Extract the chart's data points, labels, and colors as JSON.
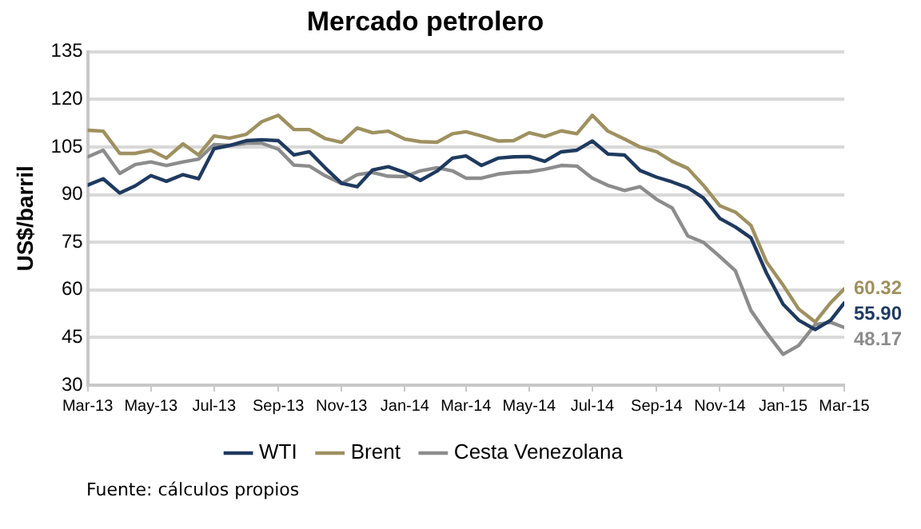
{
  "chart_data": {
    "type": "line",
    "title": "Mercado petrolero",
    "ylabel": "US$/barril",
    "x": [
      "2013-03-01",
      "2013-03-16",
      "2013-04-01",
      "2013-04-16",
      "2013-05-01",
      "2013-05-16",
      "2013-06-01",
      "2013-06-16",
      "2013-07-01",
      "2013-07-16",
      "2013-08-01",
      "2013-08-16",
      "2013-09-01",
      "2013-09-16",
      "2013-10-01",
      "2013-10-16",
      "2013-11-01",
      "2013-11-16",
      "2013-12-01",
      "2013-12-16",
      "2014-01-01",
      "2014-01-16",
      "2014-02-01",
      "2014-02-16",
      "2014-03-01",
      "2014-03-16",
      "2014-04-01",
      "2014-04-16",
      "2014-05-01",
      "2014-05-16",
      "2014-06-01",
      "2014-06-16",
      "2014-07-01",
      "2014-07-16",
      "2014-08-01",
      "2014-08-16",
      "2014-09-01",
      "2014-09-16",
      "2014-10-01",
      "2014-10-16",
      "2014-11-01",
      "2014-11-16",
      "2014-12-01",
      "2014-12-16",
      "2015-01-01",
      "2015-01-16",
      "2015-02-01",
      "2015-02-16",
      "2015-03-01"
    ],
    "series": [
      {
        "name": "WTI",
        "color": "#1f3a5f",
        "values": [
          93,
          95,
          90.5,
          92.8,
          96,
          94.2,
          96.3,
          95,
          104.5,
          105.5,
          107,
          107.3,
          107,
          102.5,
          103.5,
          98.5,
          93.6,
          92.5,
          97.8,
          98.8,
          97,
          94.5,
          97.4,
          101.5,
          102.2,
          99.2,
          101.5,
          101.9,
          102,
          100.5,
          103.5,
          104,
          106.9,
          102.8,
          102.5,
          97.6,
          95.5,
          94,
          92.2,
          89,
          82.5,
          79.8,
          76.4,
          65.3,
          55.5,
          50.5,
          47.5,
          50.5,
          55.9
        ],
        "value_labels": [
          null,
          null,
          null,
          null,
          null,
          null,
          null,
          null,
          null,
          null,
          null,
          null,
          null,
          null,
          null,
          null,
          null,
          null,
          null,
          null,
          null,
          null,
          null,
          null,
          null,
          null,
          null,
          null,
          null,
          null,
          null,
          null,
          null,
          null,
          null,
          null,
          null,
          null,
          null,
          null,
          null,
          null,
          null,
          null,
          null,
          null,
          null,
          null,
          "55.90"
        ]
      },
      {
        "name": "Brent",
        "color": "#9e9160",
        "values": [
          110.3,
          110,
          103,
          103,
          104,
          101.5,
          106,
          102.5,
          108.5,
          107.8,
          109,
          113,
          115,
          110.5,
          110.5,
          107.7,
          106.5,
          111,
          109.5,
          110,
          107.5,
          106.7,
          106.5,
          109.2,
          109.8,
          108.5,
          106.9,
          107,
          109.5,
          108.3,
          110.1,
          109.2,
          115,
          110,
          107.5,
          105,
          103.5,
          100.5,
          98.3,
          93,
          86.5,
          84.5,
          80.3,
          68.8,
          61.5,
          54,
          49.9,
          56,
          60.32
        ],
        "value_labels": [
          null,
          null,
          null,
          null,
          null,
          null,
          null,
          null,
          null,
          null,
          null,
          null,
          null,
          null,
          null,
          null,
          null,
          null,
          null,
          null,
          null,
          null,
          null,
          null,
          null,
          null,
          null,
          null,
          null,
          null,
          null,
          null,
          null,
          null,
          null,
          null,
          null,
          null,
          null,
          null,
          null,
          null,
          null,
          null,
          null,
          null,
          null,
          null,
          "60.32"
        ]
      },
      {
        "name": "Cesta Venezolana",
        "color": "#8c8c8c",
        "values": [
          101.9,
          104,
          96.7,
          99.5,
          100.3,
          99.2,
          100.3,
          101.2,
          105.8,
          105.5,
          106.2,
          106.2,
          104.3,
          99.3,
          99,
          96,
          93.5,
          96.3,
          97,
          95.8,
          95.7,
          97.5,
          98.5,
          97.5,
          95.2,
          95.2,
          96.5,
          97,
          97.2,
          98,
          99.2,
          99,
          95.2,
          92.9,
          91.3,
          92.5,
          88.5,
          85.8,
          77,
          75,
          70.5,
          66,
          53.5,
          46.5,
          39.7,
          42.5,
          49.1,
          49.8,
          48.17
        ],
        "value_labels": [
          null,
          null,
          null,
          null,
          null,
          null,
          null,
          null,
          null,
          null,
          null,
          null,
          null,
          null,
          null,
          null,
          null,
          null,
          null,
          null,
          null,
          null,
          null,
          null,
          null,
          null,
          null,
          null,
          null,
          null,
          null,
          null,
          null,
          null,
          null,
          null,
          null,
          null,
          null,
          null,
          null,
          null,
          null,
          null,
          null,
          null,
          null,
          null,
          "48.17"
        ]
      }
    ],
    "ylim": [
      30,
      135
    ],
    "yticks": [
      30,
      45,
      60,
      75,
      90,
      105,
      120,
      135
    ],
    "xlim": [
      "2013-03-01",
      "2015-03-01"
    ],
    "xticks": [
      {
        "value": "2013-03-01",
        "label": "Mar-13"
      },
      {
        "value": "2013-05-01",
        "label": "May-13"
      },
      {
        "value": "2013-07-01",
        "label": "Jul-13"
      },
      {
        "value": "2013-09-01",
        "label": "Sep-13"
      },
      {
        "value": "2013-11-01",
        "label": "Nov-13"
      },
      {
        "value": "2014-01-01",
        "label": "Jan-14"
      },
      {
        "value": "2014-03-01",
        "label": "Mar-14"
      },
      {
        "value": "2014-05-01",
        "label": "May-14"
      },
      {
        "value": "2014-07-01",
        "label": "Jul-14"
      },
      {
        "value": "2014-09-01",
        "label": "Sep-14"
      },
      {
        "value": "2014-11-01",
        "label": "Nov-14"
      },
      {
        "value": "2015-01-01",
        "label": "Jan-15"
      },
      {
        "value": "2015-03-01",
        "label": "Mar-15"
      }
    ],
    "grid": "y",
    "legend": "bottom",
    "marker": "none",
    "line_style": "solid",
    "annotations": [
      "Fuente: cálculos propios"
    ]
  }
}
